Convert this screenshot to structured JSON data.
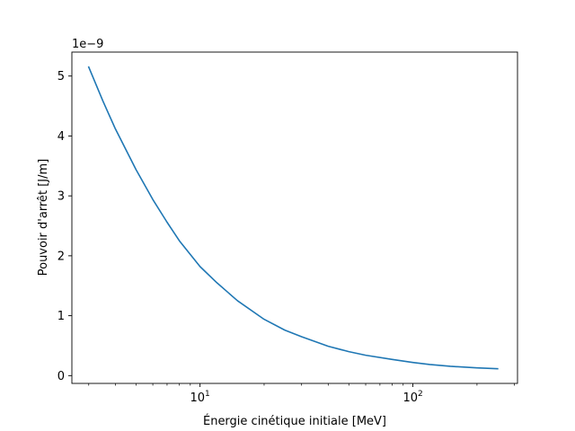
{
  "chart_data": {
    "type": "line",
    "title": "",
    "xlabel": "Énergie cinétique initiale [MeV]",
    "ylabel": "Pouvoir d'arrêt [J/m]",
    "y_offset_text": "1e−9",
    "y_multiplier": 1e-09,
    "xscale": "log",
    "xlim": [
      2.5,
      310
    ],
    "ylim": [
      -1.3e-10,
      5.4e-09
    ],
    "grid": false,
    "legend": "none",
    "x_ticks": [
      {
        "value": 10,
        "base": "10",
        "exp": "1"
      },
      {
        "value": 100,
        "base": "10",
        "exp": "2"
      }
    ],
    "y_ticks": [
      {
        "value": 0,
        "label": "0"
      },
      {
        "value": 1e-09,
        "label": "1"
      },
      {
        "value": 2e-09,
        "label": "2"
      },
      {
        "value": 3e-09,
        "label": "3"
      },
      {
        "value": 4e-09,
        "label": "4"
      },
      {
        "value": 5e-09,
        "label": "5"
      }
    ],
    "x_minor_ticks": [
      3,
      4,
      5,
      6,
      7,
      8,
      9,
      20,
      30,
      40,
      50,
      60,
      70,
      80,
      90,
      200,
      300
    ],
    "series": [
      {
        "color": "#1f77b4",
        "x": [
          3,
          3.5,
          4,
          5,
          6,
          7,
          8,
          10,
          12,
          15,
          20,
          25,
          30,
          40,
          50,
          60,
          80,
          100,
          120,
          150,
          200,
          250
        ],
        "y": [
          5.15e-09,
          4.58e-09,
          4.12e-09,
          3.44e-09,
          2.94e-09,
          2.56e-09,
          2.25e-09,
          1.82e-09,
          1.55e-09,
          1.25e-09,
          9.4e-10,
          7.6e-10,
          6.5e-10,
          4.9e-10,
          4e-10,
          3.4e-10,
          2.7e-10,
          2.2e-10,
          1.85e-10,
          1.55e-10,
          1.3e-10,
          1.15e-10
        ]
      }
    ]
  }
}
